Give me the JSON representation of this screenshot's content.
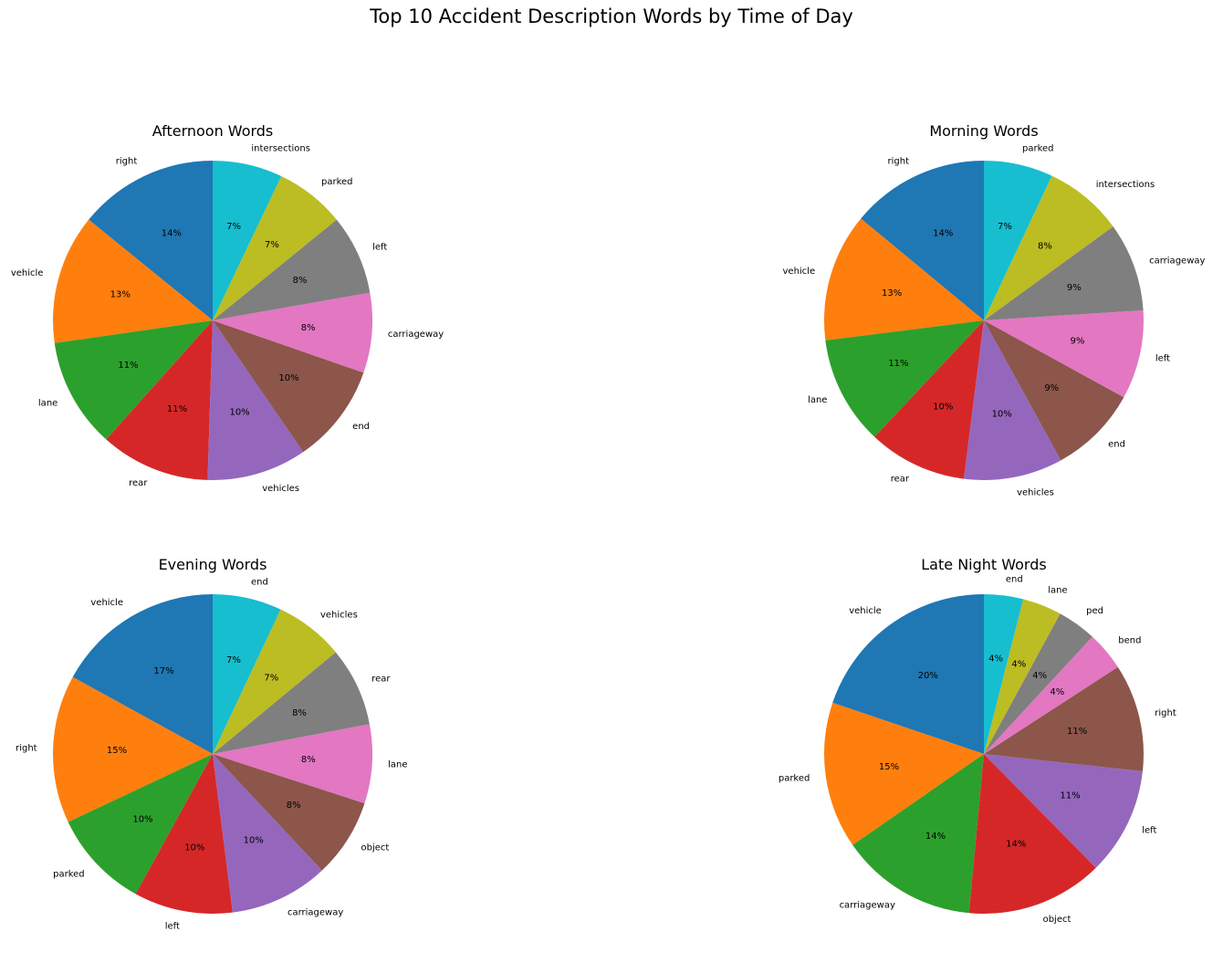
{
  "figure_title": "Top 10 Accident Description Words by Time of Day",
  "colors": [
    "#1f77b4",
    "#ff7f0e",
    "#2ca02c",
    "#d62728",
    "#9467bd",
    "#8c564b",
    "#e377c2",
    "#7f7f7f",
    "#bcbd22",
    "#17becf"
  ],
  "chart_data": [
    {
      "type": "pie",
      "title": "Afternoon Words",
      "labels": [
        "right",
        "vehicle",
        "lane",
        "rear",
        "vehicles",
        "end",
        "carriageway",
        "left",
        "parked",
        "intersections"
      ],
      "values": [
        14,
        13,
        11,
        11,
        10,
        10,
        8,
        8,
        7,
        7
      ],
      "value_labels": [
        "14%",
        "13%",
        "11%",
        "11%",
        "10%",
        "10%",
        "8%",
        "8%",
        "7%",
        "7%"
      ],
      "start_angle": 90,
      "direction": "counterclockwise"
    },
    {
      "type": "pie",
      "title": "Morning Words",
      "labels": [
        "right",
        "vehicle",
        "lane",
        "rear",
        "vehicles",
        "end",
        "left",
        "carriageway",
        "intersections",
        "parked"
      ],
      "values": [
        14,
        13,
        11,
        10,
        10,
        9,
        9,
        9,
        8,
        7
      ],
      "value_labels": [
        "14%",
        "13%",
        "11%",
        "10%",
        "10%",
        "9%",
        "9%",
        "9%",
        "8%",
        "7%"
      ],
      "start_angle": 90,
      "direction": "counterclockwise"
    },
    {
      "type": "pie",
      "title": "Evening Words",
      "labels": [
        "vehicle",
        "right",
        "parked",
        "left",
        "carriageway",
        "object",
        "lane",
        "rear",
        "vehicles",
        "end"
      ],
      "values": [
        17,
        15,
        10,
        10,
        10,
        8,
        8,
        8,
        7,
        7
      ],
      "value_labels": [
        "17%",
        "15%",
        "10%",
        "10%",
        "10%",
        "8%",
        "8%",
        "8%",
        "7%",
        "7%"
      ],
      "start_angle": 90,
      "direction": "counterclockwise"
    },
    {
      "type": "pie",
      "title": "Late Night Words",
      "labels": [
        "vehicle",
        "parked",
        "carriageway",
        "object",
        "left",
        "right",
        "bend",
        "ped",
        "lane",
        "end"
      ],
      "values": [
        20,
        15,
        14,
        14,
        11,
        11,
        4,
        4,
        4,
        4
      ],
      "value_labels": [
        "20%",
        "15%",
        "14%",
        "14%",
        "11%",
        "11%",
        "4%",
        "4%",
        "4%",
        "4%"
      ],
      "start_angle": 90,
      "direction": "counterclockwise"
    }
  ]
}
